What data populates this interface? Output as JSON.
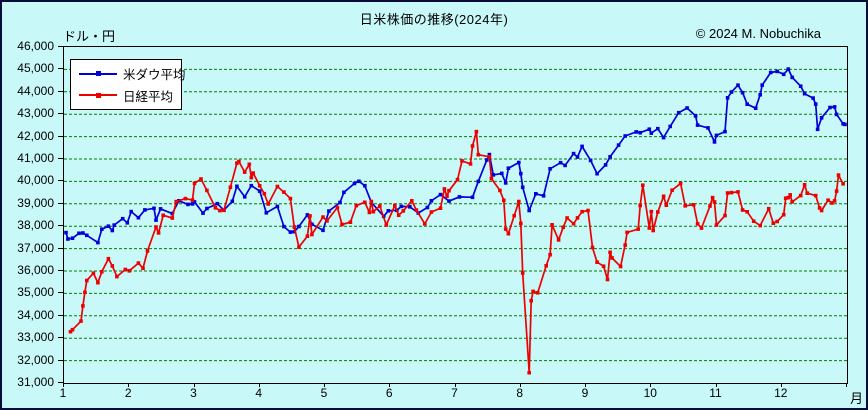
{
  "header": {
    "title": "日米株価の推移(2024年)",
    "y_unit_label": "ドル・円",
    "copyright": "© 2024 M. Nobuchika"
  },
  "legend": {
    "items": [
      {
        "id": "dow",
        "label": "米ダウ平均",
        "color": "#0000D8"
      },
      {
        "id": "nikkei",
        "label": "日経平均",
        "color": "#EE0000"
      }
    ]
  },
  "axes": {
    "x_tick_labels": [
      "1",
      "2",
      "3",
      "4",
      "5",
      "6",
      "7",
      "8",
      "9",
      "10",
      "11",
      "12"
    ],
    "x_unit_label": "月",
    "y_tick_labels": [
      "46,000",
      "45,000",
      "44,000",
      "43,000",
      "42,000",
      "41,000",
      "40,000",
      "39,000",
      "38,000",
      "37,000",
      "36,000",
      "35,000",
      "34,000",
      "33,000",
      "32,000",
      "31,000"
    ],
    "y_max": 46000,
    "y_min": 31000,
    "y_step": 1000
  },
  "colors": {
    "background": "#C8F8F8",
    "frame": "#0c0c3a",
    "plot_border": "#000000",
    "grid": "#008000",
    "dow": "#0000D8",
    "nikkei": "#EE0000",
    "legend_bg": "#FFFFFF",
    "text": "#000000"
  },
  "chart_data": {
    "type": "line",
    "title": "日米株価の推移(2024年)",
    "xlabel": "月",
    "ylabel": "ドル・円",
    "xlim": [
      1,
      13
    ],
    "ylim": [
      31000,
      46000
    ],
    "grid": "horizontal dashed green lines every 1,000 from 32,000 to 45,000",
    "legend_position": "top-left inside plot",
    "x_encoding": "decimal month of 2024 (e.g. 8.13 ≈ Aug 5)",
    "marker": "small filled square on every data point",
    "series": [
      {
        "id": "dow",
        "name": "米ダウ平均",
        "color": "#0000D8",
        "points": [
          [
            1.03,
            37715
          ],
          [
            1.06,
            37430
          ],
          [
            1.13,
            37466
          ],
          [
            1.23,
            37683
          ],
          [
            1.29,
            37696
          ],
          [
            1.35,
            37593
          ],
          [
            1.52,
            37267
          ],
          [
            1.58,
            37864
          ],
          [
            1.68,
            38002
          ],
          [
            1.74,
            37806
          ],
          [
            1.77,
            38049
          ],
          [
            1.9,
            38333
          ],
          [
            1.97,
            38150
          ],
          [
            2.03,
            38654
          ],
          [
            2.14,
            38380
          ],
          [
            2.24,
            38726
          ],
          [
            2.38,
            38797
          ],
          [
            2.41,
            38272
          ],
          [
            2.48,
            38773
          ],
          [
            2.66,
            38563
          ],
          [
            2.76,
            39132
          ],
          [
            2.9,
            38972
          ],
          [
            2.97,
            38996
          ],
          [
            3.0,
            39087
          ],
          [
            3.13,
            38585
          ],
          [
            3.19,
            38791
          ],
          [
            3.35,
            39005
          ],
          [
            3.45,
            38715
          ],
          [
            3.58,
            39110
          ],
          [
            3.65,
            39781
          ],
          [
            3.77,
            39313
          ],
          [
            3.87,
            39807
          ],
          [
            4.0,
            39567
          ],
          [
            4.1,
            38597
          ],
          [
            4.27,
            38884
          ],
          [
            4.37,
            37983
          ],
          [
            4.47,
            37735
          ],
          [
            4.53,
            37753
          ],
          [
            4.6,
            37986
          ],
          [
            4.73,
            38503
          ],
          [
            4.8,
            38086
          ],
          [
            4.97,
            37816
          ],
          [
            5.06,
            38676
          ],
          [
            5.23,
            39056
          ],
          [
            5.29,
            39513
          ],
          [
            5.45,
            39908
          ],
          [
            5.52,
            40003
          ],
          [
            5.61,
            39807
          ],
          [
            5.71,
            39065
          ],
          [
            5.9,
            38442
          ],
          [
            5.97,
            38686
          ],
          [
            6.1,
            38711
          ],
          [
            6.17,
            38886
          ],
          [
            6.3,
            38868
          ],
          [
            6.43,
            38589
          ],
          [
            6.57,
            38835
          ],
          [
            6.63,
            39135
          ],
          [
            6.77,
            39411
          ],
          [
            6.9,
            39119
          ],
          [
            7.06,
            39308
          ],
          [
            7.26,
            39292
          ],
          [
            7.35,
            40001
          ],
          [
            7.48,
            40954
          ],
          [
            7.52,
            41198
          ],
          [
            7.58,
            40288
          ],
          [
            7.71,
            40358
          ],
          [
            7.77,
            39935
          ],
          [
            7.81,
            40589
          ],
          [
            7.97,
            40843
          ],
          [
            8.0,
            40347
          ],
          [
            8.03,
            39737
          ],
          [
            8.13,
            38703
          ],
          [
            8.23,
            39446
          ],
          [
            8.35,
            39357
          ],
          [
            8.45,
            40563
          ],
          [
            8.61,
            40834
          ],
          [
            8.68,
            40713
          ],
          [
            8.81,
            41240
          ],
          [
            8.87,
            41091
          ],
          [
            8.94,
            41563
          ],
          [
            9.07,
            40937
          ],
          [
            9.17,
            40345
          ],
          [
            9.3,
            40737
          ],
          [
            9.37,
            41097
          ],
          [
            9.5,
            41622
          ],
          [
            9.6,
            42025
          ],
          [
            9.77,
            42208
          ],
          [
            9.83,
            42175
          ],
          [
            9.97,
            42330
          ],
          [
            10.0,
            42157
          ],
          [
            10.1,
            42353
          ],
          [
            10.19,
            41954
          ],
          [
            10.29,
            42454
          ],
          [
            10.42,
            43065
          ],
          [
            10.55,
            43276
          ],
          [
            10.68,
            42925
          ],
          [
            10.71,
            42515
          ],
          [
            10.87,
            42387
          ],
          [
            10.97,
            41763
          ],
          [
            11.0,
            42052
          ],
          [
            11.13,
            42222
          ],
          [
            11.17,
            43730
          ],
          [
            11.23,
            43989
          ],
          [
            11.33,
            44294
          ],
          [
            11.4,
            43958
          ],
          [
            11.47,
            43445
          ],
          [
            11.6,
            43269
          ],
          [
            11.67,
            43870
          ],
          [
            11.7,
            44297
          ],
          [
            11.83,
            44860
          ],
          [
            11.93,
            44911
          ],
          [
            12.03,
            44782
          ],
          [
            12.1,
            45014
          ],
          [
            12.16,
            44643
          ],
          [
            12.29,
            44248
          ],
          [
            12.35,
            43914
          ],
          [
            12.48,
            43717
          ],
          [
            12.52,
            43450
          ],
          [
            12.55,
            42327
          ],
          [
            12.61,
            42840
          ],
          [
            12.74,
            43297
          ],
          [
            12.81,
            43326
          ],
          [
            12.84,
            42992
          ],
          [
            12.94,
            42573
          ],
          [
            12.97,
            42544
          ]
        ]
      },
      {
        "id": "nikkei",
        "name": "日経平均",
        "color": "#EE0000",
        "points": [
          [
            1.1,
            33288
          ],
          [
            1.13,
            33378
          ],
          [
            1.26,
            33763
          ],
          [
            1.29,
            34441
          ],
          [
            1.32,
            35050
          ],
          [
            1.35,
            35577
          ],
          [
            1.45,
            35901
          ],
          [
            1.52,
            35478
          ],
          [
            1.58,
            35963
          ],
          [
            1.68,
            36547
          ],
          [
            1.74,
            36226
          ],
          [
            1.81,
            35751
          ],
          [
            1.94,
            36065
          ],
          [
            2.0,
            36011
          ],
          [
            2.14,
            36354
          ],
          [
            2.21,
            36120
          ],
          [
            2.28,
            36897
          ],
          [
            2.41,
            37964
          ],
          [
            2.45,
            37703
          ],
          [
            2.52,
            38487
          ],
          [
            2.66,
            38364
          ],
          [
            2.72,
            39099
          ],
          [
            2.86,
            39234
          ],
          [
            2.97,
            39166
          ],
          [
            3.0,
            39911
          ],
          [
            3.1,
            40109
          ],
          [
            3.19,
            39599
          ],
          [
            3.32,
            38820
          ],
          [
            3.39,
            38696
          ],
          [
            3.45,
            38708
          ],
          [
            3.55,
            39740
          ],
          [
            3.65,
            40815
          ],
          [
            3.68,
            40888
          ],
          [
            3.77,
            40415
          ],
          [
            3.84,
            40763
          ],
          [
            3.87,
            40168
          ],
          [
            3.9,
            40369
          ],
          [
            4.0,
            39803
          ],
          [
            4.07,
            39452
          ],
          [
            4.13,
            38992
          ],
          [
            4.27,
            39773
          ],
          [
            4.37,
            39524
          ],
          [
            4.47,
            39233
          ],
          [
            4.53,
            37962
          ],
          [
            4.6,
            37068
          ],
          [
            4.73,
            37553
          ],
          [
            4.77,
            38460
          ],
          [
            4.8,
            37628
          ],
          [
            4.97,
            38406
          ],
          [
            5.03,
            38236
          ],
          [
            5.19,
            38835
          ],
          [
            5.26,
            38074
          ],
          [
            5.39,
            38179
          ],
          [
            5.48,
            38920
          ],
          [
            5.61,
            39069
          ],
          [
            5.68,
            38617
          ],
          [
            5.71,
            39103
          ],
          [
            5.74,
            38646
          ],
          [
            5.84,
            38900
          ],
          [
            5.94,
            38054
          ],
          [
            6.07,
            38923
          ],
          [
            6.13,
            38490
          ],
          [
            6.2,
            38684
          ],
          [
            6.33,
            39135
          ],
          [
            6.4,
            38720
          ],
          [
            6.53,
            38103
          ],
          [
            6.63,
            38633
          ],
          [
            6.77,
            38805
          ],
          [
            6.83,
            39667
          ],
          [
            6.87,
            39341
          ],
          [
            6.9,
            39583
          ],
          [
            7.03,
            40075
          ],
          [
            7.1,
            40914
          ],
          [
            7.23,
            40781
          ],
          [
            7.26,
            41580
          ],
          [
            7.32,
            42224
          ],
          [
            7.35,
            41190
          ],
          [
            7.52,
            41098
          ],
          [
            7.55,
            40126
          ],
          [
            7.68,
            39599
          ],
          [
            7.74,
            39155
          ],
          [
            7.77,
            37870
          ],
          [
            7.81,
            37667
          ],
          [
            7.9,
            38468
          ],
          [
            7.97,
            39102
          ],
          [
            8.0,
            38126
          ],
          [
            8.03,
            35910
          ],
          [
            8.13,
            31458
          ],
          [
            8.16,
            34675
          ],
          [
            8.19,
            35090
          ],
          [
            8.26,
            35025
          ],
          [
            8.39,
            36232
          ],
          [
            8.45,
            36726
          ],
          [
            8.48,
            38063
          ],
          [
            8.58,
            37389
          ],
          [
            8.65,
            37952
          ],
          [
            8.71,
            38364
          ],
          [
            8.81,
            38110
          ],
          [
            8.87,
            38372
          ],
          [
            8.94,
            38648
          ],
          [
            9.03,
            38701
          ],
          [
            9.1,
            37047
          ],
          [
            9.17,
            36391
          ],
          [
            9.27,
            36216
          ],
          [
            9.33,
            35619
          ],
          [
            9.37,
            36833
          ],
          [
            9.4,
            36582
          ],
          [
            9.53,
            36203
          ],
          [
            9.6,
            37155
          ],
          [
            9.63,
            37724
          ],
          [
            9.8,
            37870
          ],
          [
            9.83,
            38925
          ],
          [
            9.87,
            39829
          ],
          [
            9.97,
            37920
          ],
          [
            10.0,
            38652
          ],
          [
            10.03,
            37808
          ],
          [
            10.1,
            38636
          ],
          [
            10.19,
            39333
          ],
          [
            10.23,
            38937
          ],
          [
            10.32,
            39606
          ],
          [
            10.45,
            39910
          ],
          [
            10.52,
            38911
          ],
          [
            10.65,
            38955
          ],
          [
            10.71,
            38105
          ],
          [
            10.77,
            37914
          ],
          [
            10.9,
            38904
          ],
          [
            10.94,
            39277
          ],
          [
            10.97,
            39081
          ],
          [
            11.0,
            38054
          ],
          [
            11.13,
            38475
          ],
          [
            11.17,
            39481
          ],
          [
            11.23,
            39500
          ],
          [
            11.33,
            39533
          ],
          [
            11.4,
            38722
          ],
          [
            11.47,
            38643
          ],
          [
            11.57,
            38221
          ],
          [
            11.67,
            38026
          ],
          [
            11.8,
            38780
          ],
          [
            11.87,
            38135
          ],
          [
            11.93,
            38208
          ],
          [
            12.03,
            38514
          ],
          [
            12.06,
            39249
          ],
          [
            12.1,
            39277
          ],
          [
            12.13,
            39396
          ],
          [
            12.16,
            39091
          ],
          [
            12.29,
            39368
          ],
          [
            12.35,
            39850
          ],
          [
            12.39,
            39471
          ],
          [
            12.52,
            39365
          ],
          [
            12.58,
            38814
          ],
          [
            12.61,
            38702
          ],
          [
            12.71,
            39161
          ],
          [
            12.77,
            39036
          ],
          [
            12.81,
            39131
          ],
          [
            12.84,
            39568
          ],
          [
            12.87,
            40282
          ],
          [
            12.94,
            39895
          ]
        ]
      }
    ]
  }
}
